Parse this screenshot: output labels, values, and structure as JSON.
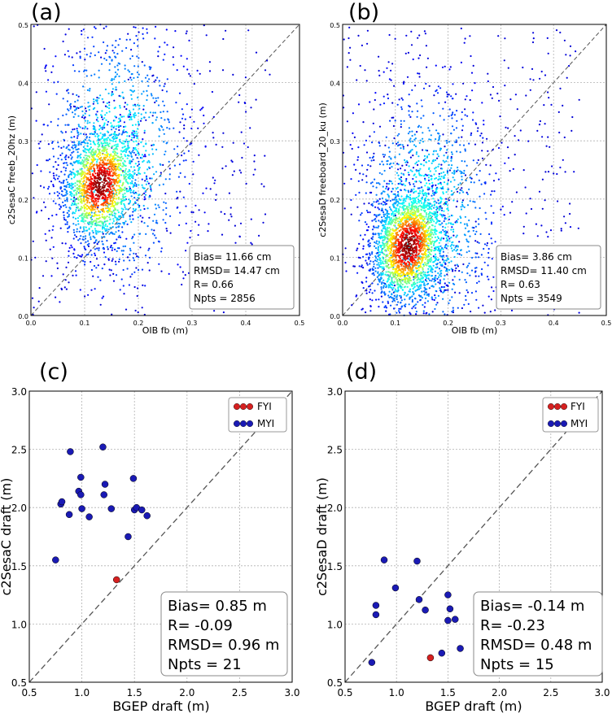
{
  "chart_data": [
    {
      "panel": "(a)",
      "type": "scatter",
      "xlabel": "OIB fb (m)",
      "ylabel": "c2SesaC freeb_20hz (m)",
      "xlim": [
        0.0,
        0.5
      ],
      "ylim": [
        0.0,
        0.5
      ],
      "xticks": [
        "0.0",
        "0.1",
        "0.2",
        "0.3",
        "0.4",
        "0.5"
      ],
      "yticks": [
        "0.0",
        "0.1",
        "0.2",
        "0.3",
        "0.4",
        "0.5"
      ],
      "grid": true,
      "one_to_one_line": true,
      "coloring": "point density (jet colormap)",
      "density_center": [
        0.13,
        0.225
      ],
      "stats": [
        "Bias= 11.66 cm",
        "RMSD= 14.47 cm",
        "R= 0.66",
        "Npts = 2856"
      ],
      "stats_position": "bottom-right"
    },
    {
      "panel": "(b)",
      "type": "scatter",
      "xlabel": "OIB fb (m)",
      "ylabel": "c2SesaD freeboard_20_ku (m)",
      "xlim": [
        0.0,
        0.5
      ],
      "ylim": [
        0.0,
        0.5
      ],
      "xticks": [
        "0.0",
        "0.1",
        "0.2",
        "0.3",
        "0.4",
        "0.5"
      ],
      "yticks": [
        "0.0",
        "0.1",
        "0.2",
        "0.3",
        "0.4",
        "0.5"
      ],
      "grid": true,
      "one_to_one_line": true,
      "coloring": "point density (jet colormap)",
      "density_center": [
        0.125,
        0.12
      ],
      "stats": [
        "Bias= 3.86 cm",
        "RMSD= 11.40 cm",
        "R= 0.63",
        "Npts = 3549"
      ],
      "stats_position": "bottom-right"
    },
    {
      "panel": "(c)",
      "type": "scatter",
      "xlabel": "BGEP draft (m)",
      "ylabel": "c2SesaC draft (m)",
      "xlim": [
        0.5,
        3.0
      ],
      "ylim": [
        0.5,
        3.0
      ],
      "xticks": [
        "0.5",
        "1.0",
        "1.5",
        "2.0",
        "2.5",
        "3.0"
      ],
      "yticks": [
        "0.5",
        "1.0",
        "1.5",
        "2.0",
        "2.5",
        "3.0"
      ],
      "grid": true,
      "one_to_one_line": true,
      "legend": [
        {
          "label": "FYI",
          "color": "#d62020"
        },
        {
          "label": "MYI",
          "color": "#1a1ab4"
        }
      ],
      "legend_position": "top-right",
      "series": [
        {
          "name": "FYI",
          "color": "#d62020",
          "points": [
            [
              1.33,
              1.38
            ]
          ]
        },
        {
          "name": "MYI",
          "color": "#1a1ab4",
          "points": [
            [
              0.75,
              1.55
            ],
            [
              0.8,
              2.03
            ],
            [
              0.81,
              2.05
            ],
            [
              0.88,
              1.94
            ],
            [
              0.89,
              2.48
            ],
            [
              0.97,
              2.14
            ],
            [
              0.99,
              2.26
            ],
            [
              0.99,
              2.11
            ],
            [
              1.0,
              1.99
            ],
            [
              1.07,
              1.92
            ],
            [
              1.2,
              2.52
            ],
            [
              1.21,
              2.11
            ],
            [
              1.22,
              2.2
            ],
            [
              1.28,
              1.99
            ],
            [
              1.44,
              1.75
            ],
            [
              1.49,
              2.25
            ],
            [
              1.5,
              1.98
            ],
            [
              1.52,
              2.0
            ],
            [
              1.57,
              1.98
            ],
            [
              1.62,
              1.93
            ]
          ]
        }
      ],
      "stats": [
        "Bias= 0.85 m",
        "R= -0.09",
        "RMSD= 0.96 m",
        "Npts = 21"
      ],
      "stats_position": "bottom-right"
    },
    {
      "panel": "(d)",
      "type": "scatter",
      "xlabel": "BGEP draft (m)",
      "ylabel": "c2SesaD draft (m)",
      "xlim": [
        0.5,
        3.0
      ],
      "ylim": [
        0.5,
        3.0
      ],
      "xticks": [
        "0.5",
        "1.0",
        "1.5",
        "2.0",
        "2.5",
        "3.0"
      ],
      "yticks": [
        "0.5",
        "1.0",
        "1.5",
        "2.0",
        "2.5",
        "3.0"
      ],
      "grid": true,
      "one_to_one_line": true,
      "legend": [
        {
          "label": "FYI",
          "color": "#d62020"
        },
        {
          "label": "MYI",
          "color": "#1a1ab4"
        }
      ],
      "legend_position": "top-right",
      "series": [
        {
          "name": "FYI",
          "color": "#d62020",
          "points": [
            [
              1.33,
              0.71
            ]
          ]
        },
        {
          "name": "MYI",
          "color": "#1a1ab4",
          "points": [
            [
              0.76,
              0.67
            ],
            [
              0.8,
              1.16
            ],
            [
              0.8,
              1.08
            ],
            [
              0.88,
              1.55
            ],
            [
              0.99,
              1.31
            ],
            [
              1.2,
              1.54
            ],
            [
              1.22,
              1.21
            ],
            [
              1.28,
              1.12
            ],
            [
              1.44,
              0.75
            ],
            [
              1.5,
              1.25
            ],
            [
              1.52,
              1.13
            ],
            [
              1.5,
              1.03
            ],
            [
              1.57,
              1.04
            ],
            [
              1.62,
              0.79
            ]
          ]
        }
      ],
      "stats": [
        "Bias= -0.14 m",
        "R= -0.23",
        "RMSD= 0.48 m",
        "Npts = 15"
      ],
      "stats_position": "bottom-right"
    }
  ]
}
